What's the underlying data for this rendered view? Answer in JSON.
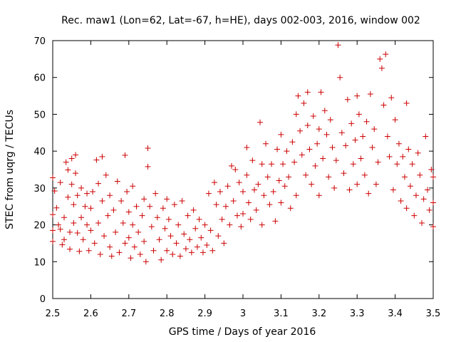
{
  "chart_data": {
    "type": "scatter",
    "title": "Rec. maw1 (Lon=62, Lat=-67, h=HE), days 002-003, 2016, window 002",
    "xlabel": "GPS time / Days of year 2016",
    "ylabel": "STEC from uqrg / TECUs",
    "xlim": [
      2.5,
      3.5
    ],
    "ylim": [
      0,
      70
    ],
    "xticks": [
      2.5,
      2.6,
      2.7,
      2.8,
      2.9,
      3.0,
      3.1,
      3.2,
      3.3,
      3.4,
      3.5
    ],
    "xtick_labels": [
      "2.5",
      "2.6",
      "2.7",
      "2.8",
      "2.9",
      "3",
      "3.1",
      "3.2",
      "3.3",
      "3.4",
      "3.5"
    ],
    "yticks": [
      0,
      10,
      20,
      30,
      40,
      50,
      60,
      70
    ],
    "ytick_labels": [
      "0",
      "10",
      "20",
      "30",
      "40",
      "50",
      "60",
      "70"
    ],
    "marker": "+",
    "color": "#cc0000",
    "grid": false,
    "series": [
      {
        "name": "STEC",
        "points": [
          [
            2.5,
            22.8
          ],
          [
            2.5,
            18.5
          ],
          [
            2.5,
            15.5
          ],
          [
            2.5,
            32.8
          ],
          [
            2.505,
            29.2
          ],
          [
            2.51,
            24.6
          ],
          [
            2.515,
            20.0
          ],
          [
            2.52,
            18.8
          ],
          [
            2.52,
            31.5
          ],
          [
            2.525,
            14.6
          ],
          [
            2.53,
            22.0
          ],
          [
            2.53,
            16.0
          ],
          [
            2.535,
            37.0
          ],
          [
            2.54,
            34.9
          ],
          [
            2.54,
            27.5
          ],
          [
            2.545,
            18.0
          ],
          [
            2.545,
            13.4
          ],
          [
            2.55,
            38.0
          ],
          [
            2.55,
            31.0
          ],
          [
            2.555,
            25.5
          ],
          [
            2.555,
            20.5
          ],
          [
            2.56,
            39.0
          ],
          [
            2.56,
            34.0
          ],
          [
            2.565,
            28.0
          ],
          [
            2.565,
            17.8
          ],
          [
            2.57,
            12.8
          ],
          [
            2.575,
            30.0
          ],
          [
            2.575,
            22.0
          ],
          [
            2.58,
            16.0
          ],
          [
            2.585,
            25.0
          ],
          [
            2.59,
            28.5
          ],
          [
            2.59,
            20.0
          ],
          [
            2.595,
            13.0
          ],
          [
            2.6,
            24.5
          ],
          [
            2.6,
            18.5
          ],
          [
            2.605,
            29.0
          ],
          [
            2.61,
            15.0
          ],
          [
            2.615,
            37.6
          ],
          [
            2.62,
            31.2
          ],
          [
            2.62,
            20.5
          ],
          [
            2.625,
            12.0
          ],
          [
            2.63,
            38.5
          ],
          [
            2.63,
            26.5
          ],
          [
            2.635,
            17.0
          ],
          [
            2.64,
            33.5
          ],
          [
            2.645,
            22.5
          ],
          [
            2.65,
            14.0
          ],
          [
            2.65,
            28.0
          ],
          [
            2.655,
            11.5
          ],
          [
            2.66,
            24.0
          ],
          [
            2.665,
            18.0
          ],
          [
            2.67,
            31.8
          ],
          [
            2.675,
            12.5
          ],
          [
            2.68,
            26.5
          ],
          [
            2.685,
            20.5
          ],
          [
            2.69,
            38.9
          ],
          [
            2.69,
            15.0
          ],
          [
            2.695,
            29.0
          ],
          [
            2.7,
            23.5
          ],
          [
            2.7,
            16.5
          ],
          [
            2.705,
            11.0
          ],
          [
            2.71,
            30.5
          ],
          [
            2.71,
            20.0
          ],
          [
            2.715,
            14.0
          ],
          [
            2.72,
            25.0
          ],
          [
            2.725,
            18.0
          ],
          [
            2.73,
            12.0
          ],
          [
            2.735,
            22.5
          ],
          [
            2.74,
            27.0
          ],
          [
            2.74,
            15.5
          ],
          [
            2.745,
            10.0
          ],
          [
            2.75,
            40.8
          ],
          [
            2.75,
            35.8
          ],
          [
            2.755,
            25.0
          ],
          [
            2.76,
            19.5
          ],
          [
            2.765,
            13.0
          ],
          [
            2.77,
            28.5
          ],
          [
            2.775,
            22.0
          ],
          [
            2.78,
            16.0
          ],
          [
            2.785,
            10.5
          ],
          [
            2.79,
            24.5
          ],
          [
            2.795,
            19.0
          ],
          [
            2.8,
            27.0
          ],
          [
            2.8,
            13.0
          ],
          [
            2.805,
            21.5
          ],
          [
            2.81,
            17.0
          ],
          [
            2.815,
            12.0
          ],
          [
            2.82,
            25.5
          ],
          [
            2.825,
            15.0
          ],
          [
            2.83,
            20.0
          ],
          [
            2.835,
            11.5
          ],
          [
            2.84,
            26.5
          ],
          [
            2.845,
            17.5
          ],
          [
            2.85,
            13.5
          ],
          [
            2.855,
            22.5
          ],
          [
            2.86,
            16.0
          ],
          [
            2.865,
            12.5
          ],
          [
            2.87,
            24.0
          ],
          [
            2.875,
            19.0
          ],
          [
            2.88,
            14.0
          ],
          [
            2.885,
            21.5
          ],
          [
            2.89,
            16.5
          ],
          [
            2.895,
            12.5
          ],
          [
            2.9,
            20.0
          ],
          [
            2.905,
            14.5
          ],
          [
            2.91,
            28.5
          ],
          [
            2.915,
            18.5
          ],
          [
            2.92,
            13.0
          ],
          [
            2.925,
            31.5
          ],
          [
            2.93,
            25.5
          ],
          [
            2.935,
            17.0
          ],
          [
            2.94,
            29.0
          ],
          [
            2.945,
            21.5
          ],
          [
            2.95,
            15.0
          ],
          [
            2.955,
            25.0
          ],
          [
            2.96,
            30.5
          ],
          [
            2.965,
            20.0
          ],
          [
            2.97,
            36.0
          ],
          [
            2.975,
            26.5
          ],
          [
            2.98,
            35.0
          ],
          [
            2.985,
            22.5
          ],
          [
            2.99,
            31.5
          ],
          [
            2.995,
            19.5
          ],
          [
            3.0,
            29.0
          ],
          [
            3.0,
            23.0
          ],
          [
            3.01,
            41.0
          ],
          [
            3.01,
            33.5
          ],
          [
            3.015,
            26.0
          ],
          [
            3.02,
            21.5
          ],
          [
            3.025,
            37.5
          ],
          [
            3.03,
            29.5
          ],
          [
            3.035,
            24.0
          ],
          [
            3.04,
            31.0
          ],
          [
            3.045,
            47.8
          ],
          [
            3.05,
            36.5
          ],
          [
            3.05,
            20.0
          ],
          [
            3.055,
            28.0
          ],
          [
            3.06,
            42.0
          ],
          [
            3.065,
            33.0
          ],
          [
            3.07,
            25.5
          ],
          [
            3.075,
            36.5
          ],
          [
            3.08,
            29.0
          ],
          [
            3.085,
            21.0
          ],
          [
            3.09,
            40.5
          ],
          [
            3.095,
            32.0
          ],
          [
            3.1,
            44.5
          ],
          [
            3.1,
            26.0
          ],
          [
            3.105,
            36.5
          ],
          [
            3.11,
            30.5
          ],
          [
            3.115,
            40.0
          ],
          [
            3.12,
            33.0
          ],
          [
            3.125,
            24.5
          ],
          [
            3.13,
            42.5
          ],
          [
            3.135,
            37.0
          ],
          [
            3.14,
            50.0
          ],
          [
            3.14,
            28.0
          ],
          [
            3.145,
            55.0
          ],
          [
            3.15,
            45.5
          ],
          [
            3.155,
            39.0
          ],
          [
            3.16,
            53.0
          ],
          [
            3.165,
            33.5
          ],
          [
            3.17,
            56.0
          ],
          [
            3.17,
            47.0
          ],
          [
            3.175,
            40.5
          ],
          [
            3.18,
            31.0
          ],
          [
            3.185,
            49.5
          ],
          [
            3.19,
            36.0
          ],
          [
            3.195,
            42.0
          ],
          [
            3.2,
            46.0
          ],
          [
            3.2,
            28.0
          ],
          [
            3.205,
            56.0
          ],
          [
            3.21,
            38.0
          ],
          [
            3.215,
            51.0
          ],
          [
            3.22,
            44.5
          ],
          [
            3.225,
            33.0
          ],
          [
            3.23,
            48.5
          ],
          [
            3.235,
            41.0
          ],
          [
            3.24,
            30.0
          ],
          [
            3.245,
            37.5
          ],
          [
            3.25,
            68.8
          ],
          [
            3.255,
            60.0
          ],
          [
            3.26,
            45.0
          ],
          [
            3.265,
            34.0
          ],
          [
            3.27,
            41.5
          ],
          [
            3.275,
            54.0
          ],
          [
            3.28,
            29.5
          ],
          [
            3.285,
            47.5
          ],
          [
            3.29,
            36.5
          ],
          [
            3.295,
            43.0
          ],
          [
            3.3,
            55.0
          ],
          [
            3.3,
            31.0
          ],
          [
            3.305,
            50.0
          ],
          [
            3.31,
            38.0
          ],
          [
            3.315,
            44.0
          ],
          [
            3.32,
            33.5
          ],
          [
            3.325,
            48.0
          ],
          [
            3.33,
            28.5
          ],
          [
            3.335,
            55.5
          ],
          [
            3.34,
            41.0
          ],
          [
            3.345,
            46.0
          ],
          [
            3.35,
            31.0
          ],
          [
            3.355,
            37.0
          ],
          [
            3.36,
            65.0
          ],
          [
            3.365,
            62.5
          ],
          [
            3.37,
            52.5
          ],
          [
            3.375,
            66.3
          ],
          [
            3.38,
            44.0
          ],
          [
            3.385,
            38.5
          ],
          [
            3.39,
            54.5
          ],
          [
            3.395,
            29.5
          ],
          [
            3.4,
            48.5
          ],
          [
            3.405,
            36.5
          ],
          [
            3.41,
            42.0
          ],
          [
            3.415,
            26.5
          ],
          [
            3.42,
            38.5
          ],
          [
            3.425,
            33.0
          ],
          [
            3.43,
            53.0
          ],
          [
            3.43,
            24.5
          ],
          [
            3.435,
            40.5
          ],
          [
            3.44,
            30.5
          ],
          [
            3.445,
            36.5
          ],
          [
            3.45,
            22.5
          ],
          [
            3.455,
            28.0
          ],
          [
            3.46,
            39.5
          ],
          [
            3.465,
            33.5
          ],
          [
            3.47,
            20.5
          ],
          [
            3.475,
            27.0
          ],
          [
            3.48,
            44.0
          ],
          [
            3.485,
            29.5
          ],
          [
            3.49,
            24.0
          ],
          [
            3.495,
            35.0
          ],
          [
            3.5,
            33.0
          ],
          [
            3.5,
            19.5
          ],
          [
            3.5,
            26.0
          ]
        ]
      }
    ]
  }
}
